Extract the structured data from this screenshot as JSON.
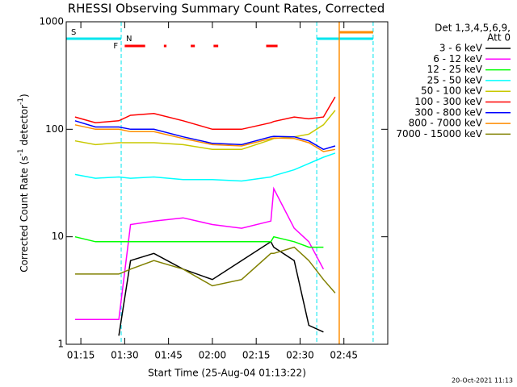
{
  "chart_data": {
    "type": "line",
    "title": "RHESSI Observing Summary Count Rates, Corrected",
    "xlabel": "Start Time (25-Aug-04 01:13:22)",
    "ylabel_parts": [
      "Corrected Count Rate (s",
      "-1",
      " detector",
      "-1",
      ")"
    ],
    "footer": "20-Oct-2021 11:13",
    "legend_header": [
      "Det 1,3,4,5,6,9,",
      "Att 0"
    ],
    "log_y": true,
    "xlim": [
      70,
      180
    ],
    "ylim": [
      1,
      1000
    ],
    "xticks": [
      {
        "value": 75,
        "label": "01:15"
      },
      {
        "value": 90,
        "label": "01:30"
      },
      {
        "value": 105,
        "label": "01:45"
      },
      {
        "value": 120,
        "label": "02:00"
      },
      {
        "value": 135,
        "label": "02:15"
      },
      {
        "value": 150,
        "label": "02:30"
      },
      {
        "value": 165,
        "label": "02:45"
      }
    ],
    "yticks": [
      1,
      10,
      100,
      1000
    ],
    "flag_labels": [
      {
        "label": "S",
        "color": "#ff8c00"
      },
      {
        "label": "N",
        "color": "#00e5ee"
      },
      {
        "label": "F",
        "color": "#ff0000"
      }
    ],
    "night": [
      [
        70,
        88.8
      ],
      [
        155.7,
        175
      ]
    ],
    "saa": [
      [
        163.4,
        175
      ]
    ],
    "flare": [
      [
        90,
        97
      ],
      [
        103.4,
        104.3
      ],
      [
        112.6,
        114
      ],
      [
        120.4,
        122
      ],
      [
        138.4,
        142.3
      ]
    ],
    "x": [
      73,
      80,
      88,
      92,
      100,
      110,
      120,
      130,
      140,
      141,
      148,
      153,
      158,
      162
    ],
    "series": [
      {
        "name": "3 - 6 keV",
        "color": "#000000",
        "values": [
          null,
          null,
          1.2,
          6,
          7,
          5,
          4,
          6,
          9,
          8,
          6,
          1.5,
          1.3,
          null
        ]
      },
      {
        "name": "6 - 12 keV",
        "color": "#ff00ff",
        "values": [
          1.7,
          1.7,
          1.7,
          13,
          14,
          15,
          13,
          12,
          14,
          28,
          12,
          9,
          5,
          null
        ]
      },
      {
        "name": "12 - 25 keV",
        "color": "#00ff00",
        "values": [
          10,
          9,
          9,
          9,
          9,
          9,
          9,
          9,
          9,
          10,
          9,
          8,
          8,
          null
        ]
      },
      {
        "name": "25 - 50 keV",
        "color": "#00ffff",
        "values": [
          38,
          35,
          36,
          35,
          36,
          34,
          34,
          33,
          36,
          37,
          42,
          48,
          55,
          60
        ]
      },
      {
        "name": "50 - 100 keV",
        "color": "#c8c800",
        "values": [
          78,
          72,
          75,
          75,
          75,
          72,
          65,
          65,
          80,
          82,
          85,
          90,
          110,
          150
        ]
      },
      {
        "name": "100 - 300 keV",
        "color": "#ff0000",
        "values": [
          130,
          115,
          120,
          135,
          140,
          120,
          100,
          100,
          115,
          118,
          130,
          125,
          130,
          200
        ]
      },
      {
        "name": "300 - 800 keV",
        "color": "#0000ff",
        "values": [
          120,
          105,
          105,
          100,
          100,
          85,
          74,
          72,
          85,
          86,
          85,
          78,
          65,
          70
        ]
      },
      {
        "name": "800 - 7000 keV",
        "color": "#ff8c00",
        "values": [
          110,
          100,
          100,
          95,
          95,
          82,
          72,
          70,
          82,
          83,
          82,
          75,
          62,
          65
        ]
      },
      {
        "name": "7000 - 15000 keV",
        "color": "#808000",
        "values": [
          4.5,
          4.5,
          4.5,
          5,
          6,
          5,
          3.5,
          4,
          7,
          7,
          8,
          6,
          4,
          3
        ]
      }
    ]
  }
}
